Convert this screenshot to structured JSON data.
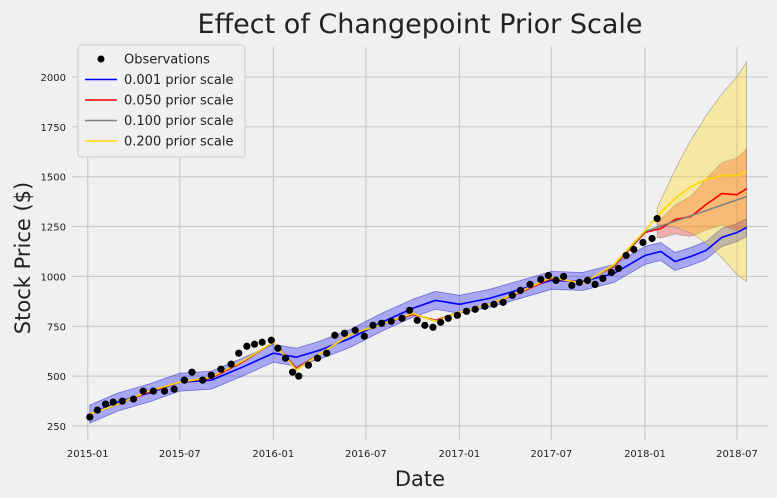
{
  "chart_data": {
    "type": "line",
    "title": "Effect of Changepoint Prior Scale",
    "xlabel": "Date",
    "ylabel": "Stock Price ($)",
    "grid": true,
    "legend_position": "top-left",
    "x_range": [
      "2014-12-01",
      "2018-08-31"
    ],
    "ylim": [
      180,
      2150
    ],
    "x_ticks": [
      {
        "date": "2015-01-01",
        "label": "2015-01"
      },
      {
        "date": "2015-07-01",
        "label": "2015-07"
      },
      {
        "date": "2016-01-01",
        "label": "2016-01"
      },
      {
        "date": "2016-07-01",
        "label": "2016-07"
      },
      {
        "date": "2017-01-01",
        "label": "2017-01"
      },
      {
        "date": "2017-07-01",
        "label": "2017-07"
      },
      {
        "date": "2018-01-01",
        "label": "2018-01"
      },
      {
        "date": "2018-07-01",
        "label": "2018-07"
      }
    ],
    "y_ticks": [
      250,
      500,
      750,
      1000,
      1250,
      1500,
      1750,
      2000
    ],
    "observations": {
      "name": "Observations",
      "color": "#000000",
      "x": [
        "2015-01-05",
        "2015-01-20",
        "2015-02-05",
        "2015-02-20",
        "2015-03-10",
        "2015-04-01",
        "2015-04-20",
        "2015-05-10",
        "2015-06-01",
        "2015-06-20",
        "2015-07-10",
        "2015-07-25",
        "2015-08-15",
        "2015-09-01",
        "2015-09-20",
        "2015-10-10",
        "2015-10-25",
        "2015-11-10",
        "2015-11-25",
        "2015-12-10",
        "2015-12-28",
        "2016-01-10",
        "2016-01-25",
        "2016-02-08",
        "2016-02-20",
        "2016-03-10",
        "2016-03-28",
        "2016-04-15",
        "2016-05-01",
        "2016-05-20",
        "2016-06-10",
        "2016-06-28",
        "2016-07-15",
        "2016-08-01",
        "2016-08-20",
        "2016-09-10",
        "2016-09-25",
        "2016-10-10",
        "2016-10-25",
        "2016-11-10",
        "2016-11-25",
        "2016-12-10",
        "2016-12-28",
        "2017-01-15",
        "2017-02-01",
        "2017-02-20",
        "2017-03-10",
        "2017-03-28",
        "2017-04-15",
        "2017-05-01",
        "2017-05-20",
        "2017-06-10",
        "2017-06-25",
        "2017-07-10",
        "2017-07-25",
        "2017-08-10",
        "2017-08-25",
        "2017-09-10",
        "2017-09-25",
        "2017-10-10",
        "2017-10-27",
        "2017-11-10",
        "2017-11-25",
        "2017-12-10",
        "2017-12-28",
        "2018-01-15",
        "2018-01-25"
      ],
      "y": [
        295,
        330,
        360,
        370,
        375,
        385,
        425,
        425,
        425,
        435,
        480,
        520,
        480,
        505,
        535,
        560,
        615,
        650,
        660,
        670,
        680,
        640,
        590,
        520,
        500,
        555,
        590,
        615,
        705,
        715,
        730,
        700,
        755,
        765,
        775,
        790,
        830,
        780,
        755,
        745,
        770,
        790,
        805,
        825,
        835,
        850,
        860,
        870,
        905,
        930,
        960,
        985,
        1005,
        980,
        1000,
        955,
        970,
        980,
        960,
        990,
        1020,
        1040,
        1105,
        1135,
        1170,
        1190,
        1290
      ]
    },
    "series": [
      {
        "name": "0.001 prior scale",
        "color": "#0000ff",
        "band_half_width": 45,
        "x": [
          "2015-01-05",
          "2015-03-01",
          "2015-05-01",
          "2015-07-01",
          "2015-09-01",
          "2015-11-01",
          "2016-01-01",
          "2016-02-15",
          "2016-04-01",
          "2016-06-01",
          "2016-08-01",
          "2016-10-01",
          "2016-11-15",
          "2017-01-01",
          "2017-03-01",
          "2017-05-01",
          "2017-07-01",
          "2017-09-01",
          "2017-11-01",
          "2018-01-01",
          "2018-02-01",
          "2018-03-01",
          "2018-04-01",
          "2018-05-01",
          "2018-06-01",
          "2018-07-01",
          "2018-07-20"
        ],
        "y": [
          310,
          370,
          415,
          470,
          480,
          545,
          615,
          595,
          630,
          690,
          770,
          840,
          880,
          860,
          890,
          935,
          980,
          975,
          1015,
          1105,
          1125,
          1075,
          1100,
          1130,
          1195,
          1220,
          1245
        ]
      },
      {
        "name": "0.050 prior scale",
        "color": "#ff0000",
        "band_start": "2018-01-25",
        "band_half_width_start": 40,
        "band_half_width_end": 200,
        "x": [
          "2015-01-05",
          "2015-03-01",
          "2015-05-01",
          "2015-07-01",
          "2015-09-01",
          "2015-11-01",
          "2016-01-01",
          "2016-02-15",
          "2016-04-01",
          "2016-06-01",
          "2016-08-01",
          "2016-10-01",
          "2016-11-15",
          "2017-01-01",
          "2017-03-01",
          "2017-05-01",
          "2017-07-01",
          "2017-09-01",
          "2017-11-01",
          "2018-01-01",
          "2018-02-01",
          "2018-03-01",
          "2018-04-01",
          "2018-05-01",
          "2018-06-01",
          "2018-07-01",
          "2018-07-20"
        ],
        "y": [
          310,
          360,
          420,
          470,
          490,
          570,
          670,
          540,
          610,
          710,
          760,
          810,
          780,
          820,
          860,
          920,
          990,
          970,
          1050,
          1220,
          1240,
          1285,
          1300,
          1360,
          1415,
          1410,
          1440
        ]
      },
      {
        "name": "0.100 prior scale",
        "color": "#808080",
        "x": [
          "2015-01-05",
          "2015-03-01",
          "2015-05-01",
          "2015-07-01",
          "2015-09-01",
          "2015-11-01",
          "2016-01-01",
          "2016-02-15",
          "2016-04-01",
          "2016-06-01",
          "2016-08-01",
          "2016-10-01",
          "2016-11-15",
          "2017-01-01",
          "2017-03-01",
          "2017-05-01",
          "2017-07-01",
          "2017-09-01",
          "2017-11-01",
          "2018-01-01",
          "2018-07-20"
        ],
        "y": [
          310,
          360,
          425,
          470,
          495,
          575,
          670,
          535,
          610,
          710,
          760,
          815,
          775,
          820,
          860,
          925,
          995,
          965,
          1055,
          1225,
          1400
        ]
      },
      {
        "name": "0.200 prior scale",
        "color": "#ffd700",
        "band_start": "2018-01-25",
        "band_half_width_start": 40,
        "band_half_width_end": 550,
        "x": [
          "2015-01-05",
          "2015-03-01",
          "2015-05-01",
          "2015-07-01",
          "2015-09-01",
          "2015-11-01",
          "2016-01-01",
          "2016-02-15",
          "2016-04-01",
          "2016-06-01",
          "2016-08-01",
          "2016-10-01",
          "2016-11-15",
          "2017-01-01",
          "2017-03-01",
          "2017-05-01",
          "2017-07-01",
          "2017-09-01",
          "2017-11-01",
          "2018-01-01",
          "2018-02-01",
          "2018-03-01",
          "2018-04-01",
          "2018-05-01",
          "2018-06-01",
          "2018-07-01",
          "2018-07-20"
        ],
        "y": [
          310,
          360,
          425,
          470,
          495,
          575,
          670,
          530,
          610,
          710,
          760,
          815,
          775,
          820,
          860,
          925,
          995,
          965,
          1060,
          1230,
          1320,
          1390,
          1450,
          1485,
          1505,
          1505,
          1525
        ]
      }
    ],
    "legend": [
      {
        "label": "Observations",
        "marker": "dot",
        "color": "#000000"
      },
      {
        "label": "0.001 prior scale",
        "marker": "line",
        "color": "#0000ff"
      },
      {
        "label": "0.050 prior scale",
        "marker": "line",
        "color": "#ff0000"
      },
      {
        "label": "0.100 prior scale",
        "marker": "line",
        "color": "#808080"
      },
      {
        "label": "0.200 prior scale",
        "marker": "line",
        "color": "#ffd700"
      }
    ]
  }
}
